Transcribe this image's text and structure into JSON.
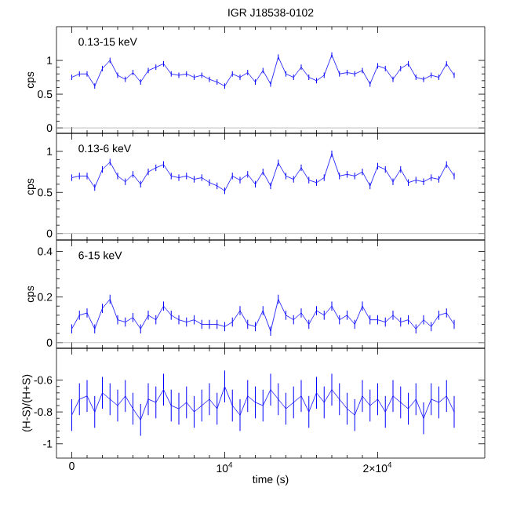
{
  "chart_data": [
    {
      "type": "line",
      "title": "IGR J18538-0102",
      "ylabel": "cps",
      "annotations": [
        "0.13-15 keV"
      ],
      "tick_labels": "y",
      "x": [
        0,
        500,
        1000,
        1500,
        2000,
        2500,
        3000,
        3500,
        4000,
        4500,
        5000,
        5500,
        6000,
        6500,
        7000,
        7500,
        8000,
        8500,
        9000,
        9500,
        10000,
        10500,
        11000,
        11500,
        12000,
        12500,
        13000,
        13500,
        14000,
        14500,
        15000,
        15500,
        16000,
        16500,
        17000,
        17500,
        18000,
        18500,
        19000,
        19500,
        20000,
        20500,
        21000,
        21500,
        22000,
        22500,
        23000,
        23500,
        24000,
        24500,
        25000
      ],
      "xlim": [
        -1000,
        27000
      ],
      "ylim": [
        -0.08,
        1.5
      ],
      "yticks": [
        0,
        0.5,
        1
      ],
      "ref_lines": [
        {
          "axis": "y",
          "value": 0,
          "color": "#b0b0b0"
        }
      ],
      "series": [
        {
          "color": "#0000ff",
          "values": [
            0.75,
            0.8,
            0.8,
            0.62,
            0.88,
            1.0,
            0.78,
            0.72,
            0.82,
            0.68,
            0.85,
            0.9,
            0.95,
            0.8,
            0.78,
            0.8,
            0.75,
            0.78,
            0.72,
            0.68,
            0.62,
            0.8,
            0.75,
            0.82,
            0.68,
            0.85,
            0.65,
            1.05,
            0.8,
            0.75,
            0.9,
            0.75,
            0.7,
            0.78,
            1.08,
            0.8,
            0.82,
            0.8,
            0.85,
            0.65,
            0.92,
            0.88,
            0.72,
            0.88,
            0.95,
            0.75,
            0.72,
            0.78,
            0.75,
            0.95,
            0.78
          ],
          "errors": [
            0.04,
            0.04,
            0.04,
            0.04,
            0.04,
            0.04,
            0.04,
            0.04,
            0.04,
            0.04,
            0.04,
            0.04,
            0.04,
            0.04,
            0.04,
            0.04,
            0.04,
            0.04,
            0.04,
            0.04,
            0.04,
            0.04,
            0.04,
            0.04,
            0.04,
            0.04,
            0.04,
            0.04,
            0.04,
            0.04,
            0.04,
            0.04,
            0.04,
            0.04,
            0.04,
            0.04,
            0.04,
            0.04,
            0.04,
            0.04,
            0.04,
            0.04,
            0.04,
            0.04,
            0.04,
            0.04,
            0.04,
            0.04,
            0.04,
            0.04,
            0.04
          ]
        }
      ]
    },
    {
      "type": "line",
      "ylabel": "cps",
      "annotations": [
        "0.13-6 keV"
      ],
      "tick_labels": "y",
      "x": [
        0,
        500,
        1000,
        1500,
        2000,
        2500,
        3000,
        3500,
        4000,
        4500,
        5000,
        5500,
        6000,
        6500,
        7000,
        7500,
        8000,
        8500,
        9000,
        9500,
        10000,
        10500,
        11000,
        11500,
        12000,
        12500,
        13000,
        13500,
        14000,
        14500,
        15000,
        15500,
        16000,
        16500,
        17000,
        17500,
        18000,
        18500,
        19000,
        19500,
        20000,
        20500,
        21000,
        21500,
        22000,
        22500,
        23000,
        23500,
        24000,
        24500,
        25000
      ],
      "xlim": [
        -1000,
        27000
      ],
      "ylim": [
        -0.08,
        1.22
      ],
      "yticks": [
        0,
        0.5,
        1
      ],
      "ref_lines": [
        {
          "axis": "y",
          "value": 0,
          "color": "#b0b0b0"
        }
      ],
      "series": [
        {
          "color": "#0000ff",
          "values": [
            0.68,
            0.7,
            0.7,
            0.56,
            0.78,
            0.87,
            0.7,
            0.63,
            0.72,
            0.6,
            0.75,
            0.8,
            0.84,
            0.7,
            0.68,
            0.7,
            0.66,
            0.68,
            0.62,
            0.58,
            0.52,
            0.7,
            0.65,
            0.72,
            0.6,
            0.75,
            0.58,
            0.86,
            0.7,
            0.66,
            0.8,
            0.65,
            0.62,
            0.68,
            0.97,
            0.7,
            0.72,
            0.7,
            0.75,
            0.58,
            0.82,
            0.78,
            0.63,
            0.78,
            0.62,
            0.65,
            0.63,
            0.68,
            0.66,
            0.84,
            0.7
          ],
          "errors": [
            0.04,
            0.04,
            0.04,
            0.04,
            0.04,
            0.04,
            0.04,
            0.04,
            0.04,
            0.04,
            0.04,
            0.04,
            0.04,
            0.04,
            0.04,
            0.04,
            0.04,
            0.04,
            0.04,
            0.04,
            0.04,
            0.04,
            0.04,
            0.04,
            0.04,
            0.04,
            0.04,
            0.04,
            0.04,
            0.04,
            0.04,
            0.04,
            0.04,
            0.04,
            0.04,
            0.04,
            0.04,
            0.04,
            0.04,
            0.04,
            0.04,
            0.04,
            0.04,
            0.04,
            0.04,
            0.04,
            0.04,
            0.04,
            0.04,
            0.04,
            0.04
          ]
        }
      ]
    },
    {
      "type": "line",
      "ylabel": "cps",
      "annotations": [
        "6-15 keV"
      ],
      "tick_labels": "y",
      "x": [
        0,
        500,
        1000,
        1500,
        2000,
        2500,
        3000,
        3500,
        4000,
        4500,
        5000,
        5500,
        6000,
        6500,
        7000,
        7500,
        8000,
        8500,
        9000,
        9500,
        10000,
        10500,
        11000,
        11500,
        12000,
        12500,
        13000,
        13500,
        14000,
        14500,
        15000,
        15500,
        16000,
        16500,
        17000,
        17500,
        18000,
        18500,
        19000,
        19500,
        20000,
        20500,
        21000,
        21500,
        22000,
        22500,
        23000,
        23500,
        24000,
        24500,
        25000
      ],
      "xlim": [
        -1000,
        27000
      ],
      "ylim": [
        -0.025,
        0.45
      ],
      "yticks": [
        0,
        0.2,
        0.4
      ],
      "ref_lines": [
        {
          "axis": "y",
          "value": 0,
          "color": "#b0b0b0"
        }
      ],
      "series": [
        {
          "color": "#0000ff",
          "values": [
            0.06,
            0.12,
            0.13,
            0.06,
            0.15,
            0.19,
            0.1,
            0.09,
            0.11,
            0.06,
            0.12,
            0.1,
            0.16,
            0.12,
            0.1,
            0.09,
            0.1,
            0.08,
            0.08,
            0.08,
            0.07,
            0.09,
            0.14,
            0.08,
            0.07,
            0.14,
            0.05,
            0.19,
            0.12,
            0.1,
            0.13,
            0.08,
            0.14,
            0.12,
            0.16,
            0.1,
            0.12,
            0.08,
            0.16,
            0.1,
            0.1,
            0.09,
            0.12,
            0.09,
            0.1,
            0.06,
            0.1,
            0.07,
            0.12,
            0.13,
            0.08
          ],
          "errors": [
            0.02,
            0.02,
            0.02,
            0.02,
            0.02,
            0.02,
            0.02,
            0.02,
            0.02,
            0.02,
            0.02,
            0.02,
            0.02,
            0.02,
            0.02,
            0.02,
            0.02,
            0.02,
            0.02,
            0.02,
            0.02,
            0.02,
            0.02,
            0.02,
            0.02,
            0.02,
            0.02,
            0.02,
            0.02,
            0.02,
            0.02,
            0.02,
            0.02,
            0.02,
            0.02,
            0.02,
            0.02,
            0.02,
            0.02,
            0.02,
            0.02,
            0.02,
            0.02,
            0.02,
            0.02,
            0.02,
            0.02,
            0.02,
            0.02,
            0.02,
            0.02
          ]
        }
      ]
    },
    {
      "type": "line",
      "ylabel": "(H-S)/(H+S)",
      "xlabel": "time (s)",
      "x": [
        0,
        500,
        1000,
        1500,
        2000,
        2500,
        3000,
        3500,
        4000,
        4500,
        5000,
        5500,
        6000,
        6500,
        7000,
        7500,
        8000,
        8500,
        9000,
        9500,
        10000,
        10500,
        11000,
        11500,
        12000,
        12500,
        13000,
        13500,
        14000,
        14500,
        15000,
        15500,
        16000,
        16500,
        17000,
        17500,
        18000,
        18500,
        19000,
        19500,
        20000,
        20500,
        21000,
        21500,
        22000,
        22500,
        23000,
        23500,
        24000,
        24500,
        25000
      ],
      "xlim": [
        -1000,
        27000
      ],
      "ylim": [
        -1.09,
        -0.4
      ],
      "yticks": [
        -1,
        -0.8,
        -0.6
      ],
      "xticks": [
        0,
        {
          "value": 10000,
          "label": "10$^{4}$"
        },
        {
          "value": 20000,
          "label": "2×10$^{4}$"
        }
      ],
      "series": [
        {
          "color": "#0000ff",
          "values": [
            -0.82,
            -0.72,
            -0.7,
            -0.8,
            -0.68,
            -0.72,
            -0.76,
            -0.7,
            -0.78,
            -0.85,
            -0.72,
            -0.74,
            -0.66,
            -0.76,
            -0.78,
            -0.74,
            -0.8,
            -0.76,
            -0.72,
            -0.78,
            -0.64,
            -0.76,
            -0.82,
            -0.7,
            -0.74,
            -0.76,
            -0.66,
            -0.72,
            -0.78,
            -0.74,
            -0.7,
            -0.8,
            -0.68,
            -0.74,
            -0.66,
            -0.72,
            -0.78,
            -0.82,
            -0.7,
            -0.76,
            -0.72,
            -0.8,
            -0.7,
            -0.74,
            -0.78,
            -0.72,
            -0.84,
            -0.72,
            -0.74,
            -0.7,
            -0.8
          ],
          "errors": [
            0.1,
            0.1,
            0.1,
            0.1,
            0.1,
            0.1,
            0.1,
            0.1,
            0.1,
            0.1,
            0.1,
            0.1,
            0.1,
            0.1,
            0.1,
            0.1,
            0.1,
            0.1,
            0.1,
            0.1,
            0.1,
            0.1,
            0.1,
            0.1,
            0.1,
            0.1,
            0.1,
            0.1,
            0.1,
            0.1,
            0.1,
            0.1,
            0.1,
            0.1,
            0.1,
            0.1,
            0.1,
            0.1,
            0.1,
            0.1,
            0.1,
            0.1,
            0.1,
            0.1,
            0.1,
            0.1,
            0.1,
            0.1,
            0.1,
            0.1,
            0.1
          ]
        }
      ]
    }
  ]
}
